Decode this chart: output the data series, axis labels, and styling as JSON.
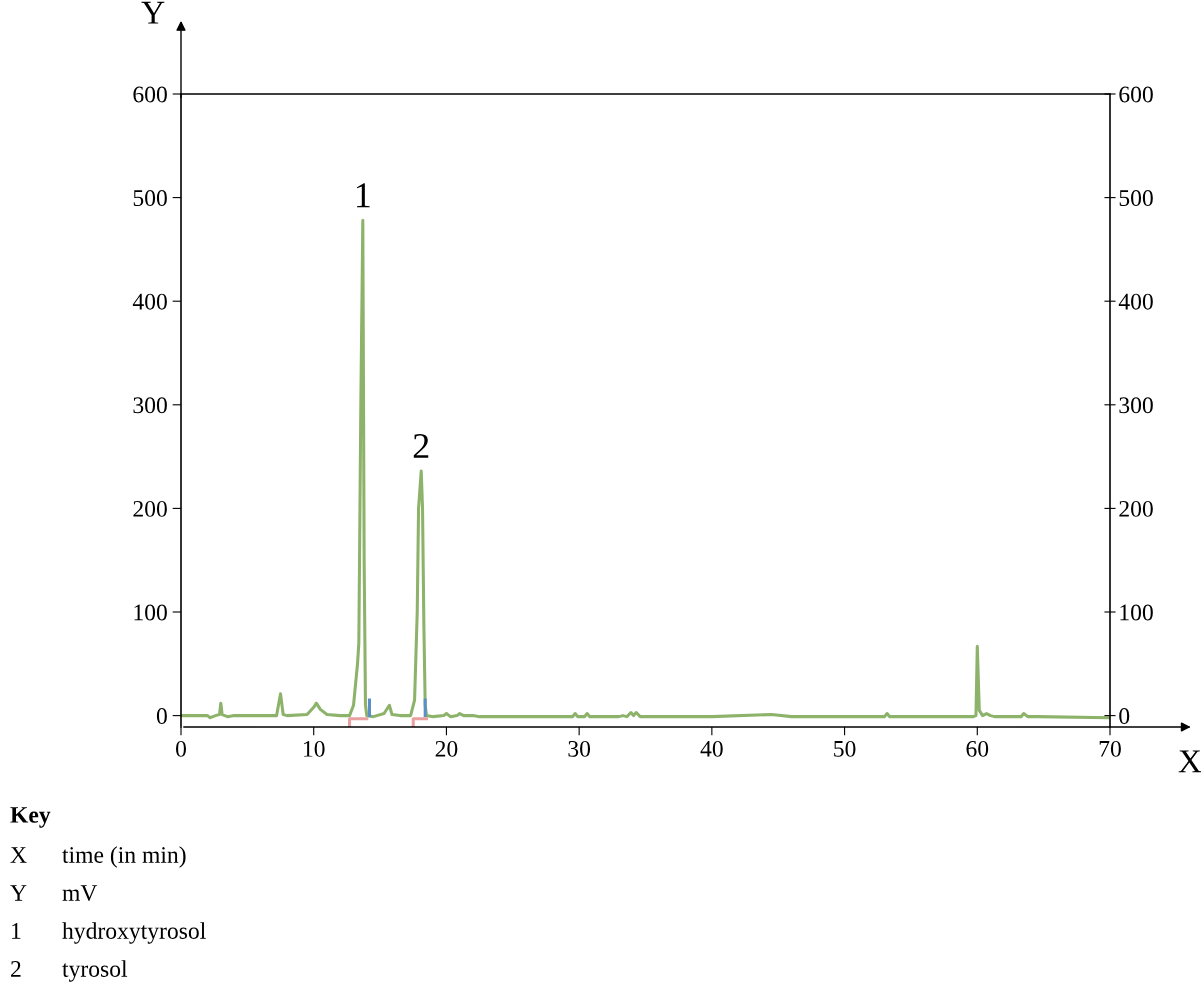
{
  "chart_data": {
    "type": "line",
    "xlabel": "X",
    "ylabel": "Y",
    "xlim": [
      0,
      70
    ],
    "xticks": [
      0,
      10,
      20,
      30,
      40,
      50,
      60,
      70
    ],
    "ylim": [
      -11,
      600
    ],
    "yticks": [
      0,
      100,
      200,
      300,
      400,
      500,
      600
    ],
    "y2lim": [
      -11,
      600
    ],
    "y2ticks": [
      0,
      100,
      200,
      300,
      400,
      500,
      600
    ],
    "grid": false,
    "marker": "none",
    "line_style": "solid",
    "series": [
      {
        "color": "#8db36a",
        "x": [
          0,
          2.0,
          2.2,
          2.6,
          2.9,
          3.0,
          3.1,
          3.5,
          4.0,
          7.2,
          7.5,
          7.7,
          8.0,
          9.5,
          10.0,
          10.2,
          10.5,
          11.0,
          12.0,
          12.7,
          13.0,
          13.3,
          13.4,
          13.55,
          13.7,
          13.8,
          13.9,
          14.0,
          14.5,
          15.3,
          15.7,
          15.9,
          16.5,
          17.3,
          17.6,
          17.8,
          17.9,
          18.1,
          18.2,
          18.3,
          18.4,
          18.5,
          19.0,
          19.8,
          20.0,
          20.3,
          20.8,
          21.0,
          21.3,
          22,
          22.5,
          23,
          25,
          29.5,
          29.7,
          29.9,
          30.4,
          30.6,
          30.8,
          33.0,
          33.3,
          33.6,
          33.9,
          34.1,
          34.3,
          34.6,
          40,
          44.5,
          46,
          53.0,
          53.2,
          53.4,
          58.0,
          59.7,
          59.9,
          60.0,
          60.15,
          60.4,
          60.7,
          61.0,
          61.3,
          63.3,
          63.5,
          63.8,
          64.5,
          70
        ],
        "values": [
          0,
          0,
          -2,
          0,
          1,
          12,
          1,
          -1,
          0,
          0,
          21,
          1,
          0,
          1,
          8,
          12,
          6,
          1,
          0,
          0,
          10,
          50,
          70,
          300,
          478,
          150,
          10,
          0,
          -1,
          2,
          10,
          1,
          0,
          0,
          15,
          100,
          200,
          236,
          200,
          88,
          10,
          0,
          -1,
          0,
          2,
          -1,
          0,
          2,
          0,
          0,
          -1,
          -1,
          -1,
          -1,
          2,
          -1,
          -1,
          2,
          -1,
          -1,
          0,
          -1,
          3,
          0,
          3,
          -1,
          -1,
          1,
          -1,
          -1,
          2,
          -1,
          -1,
          -1,
          0,
          67,
          5,
          0,
          2,
          0,
          -1,
          -1,
          2,
          -1,
          -1,
          -2
        ]
      },
      {
        "color": "#5b8fc7",
        "x": [
          14.2,
          14.2
        ],
        "values": [
          0,
          15
        ]
      },
      {
        "color": "#5b8fc7",
        "x": [
          18.4,
          18.4
        ],
        "values": [
          0,
          15
        ]
      },
      {
        "color": "#e8a0a0",
        "x": [
          12.7,
          12.7,
          14.0
        ],
        "values": [
          -10,
          -3,
          -3
        ]
      },
      {
        "color": "#e8a0a0",
        "x": [
          17.5,
          17.5,
          18.5
        ],
        "values": [
          -10,
          -3,
          -3
        ]
      }
    ],
    "annotations": [
      {
        "text": "1",
        "x": 13.7,
        "y": 478
      },
      {
        "text": "2",
        "x": 18.1,
        "y": 236
      },
      "Key",
      "X",
      "time (in min)",
      "Y",
      "mV",
      "1",
      "hydroxytyrosol",
      "2",
      "tyrosol"
    ]
  }
}
